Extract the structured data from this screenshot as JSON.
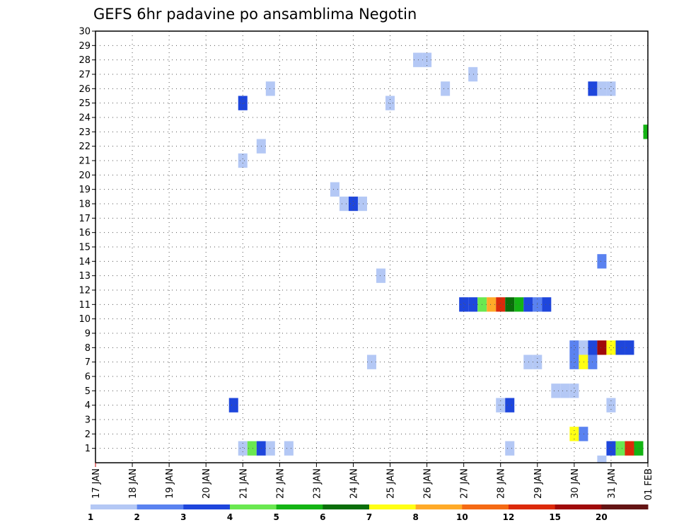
{
  "title": "GEFS 6hr padavine po ansamblima Negotin",
  "chart_data": {
    "type": "heatmap",
    "title": "GEFS 6hr padavine po ansamblima Negotin",
    "x_tick_labels": [
      "17 JAN",
      "18 JAN",
      "19 JAN",
      "20 JAN",
      "21 JAN",
      "22 JAN",
      "23 JAN",
      "24 JAN",
      "25 JAN",
      "26 JAN",
      "27 JAN",
      "28 JAN",
      "29 JAN",
      "30 JAN",
      "31 JAN",
      "01 FEB"
    ],
    "y_tick_labels": [
      "1",
      "2",
      "3",
      "4",
      "5",
      "6",
      "7",
      "8",
      "9",
      "10",
      "11",
      "12",
      "13",
      "14",
      "15",
      "16",
      "17",
      "18",
      "19",
      "20",
      "21",
      "22",
      "23",
      "24",
      "25",
      "26",
      "27",
      "28",
      "29",
      "30"
    ],
    "ylim": [
      0,
      30
    ],
    "grid": true,
    "legend_placement": "bottom",
    "colorbar": {
      "labels": [
        "1",
        "2",
        "3",
        "4",
        "5",
        "6",
        "7",
        "8",
        "10",
        "12",
        "15",
        "20"
      ],
      "colors": [
        "#b4c8f5",
        "#5a82f0",
        "#1e46dc",
        "#6ae850",
        "#14b414",
        "#0a6e0a",
        "#ffff14",
        "#ffaa28",
        "#f56a14",
        "#dc2a0a",
        "#a00a0a",
        "#641414"
      ]
    },
    "x_unit": "6-hour step from 17 JAN 00Z",
    "cells": [
      {
        "x": 16,
        "y": 1,
        "c": 0
      },
      {
        "x": 17,
        "y": 1,
        "c": 3
      },
      {
        "x": 18,
        "y": 1,
        "c": 2
      },
      {
        "x": 19,
        "y": 1,
        "c": 0
      },
      {
        "x": 21,
        "y": 1,
        "c": 0
      },
      {
        "x": 45,
        "y": 1,
        "c": 0
      },
      {
        "x": 56,
        "y": 1,
        "c": 2
      },
      {
        "x": 57,
        "y": 1,
        "c": 3
      },
      {
        "x": 58,
        "y": 1,
        "c": 9
      },
      {
        "x": 59,
        "y": 1,
        "c": 4
      },
      {
        "x": 55,
        "y": 0,
        "c": 0
      },
      {
        "x": 52,
        "y": 2,
        "c": 6
      },
      {
        "x": 53,
        "y": 2,
        "c": 1
      },
      {
        "x": 15,
        "y": 4,
        "c": 2
      },
      {
        "x": 44,
        "y": 4,
        "c": 0
      },
      {
        "x": 45,
        "y": 4,
        "c": 2
      },
      {
        "x": 56,
        "y": 4,
        "c": 0
      },
      {
        "x": 50,
        "y": 5,
        "c": 0
      },
      {
        "x": 51,
        "y": 5,
        "c": 0
      },
      {
        "x": 52,
        "y": 5,
        "c": 0
      },
      {
        "x": 30,
        "y": 7,
        "c": 0
      },
      {
        "x": 47,
        "y": 7,
        "c": 0
      },
      {
        "x": 48,
        "y": 7,
        "c": 0
      },
      {
        "x": 52,
        "y": 7,
        "c": 1
      },
      {
        "x": 53,
        "y": 7,
        "c": 6
      },
      {
        "x": 54,
        "y": 7,
        "c": 1
      },
      {
        "x": 52,
        "y": 8,
        "c": 1
      },
      {
        "x": 53,
        "y": 8,
        "c": 0
      },
      {
        "x": 54,
        "y": 8,
        "c": 2
      },
      {
        "x": 55,
        "y": 8,
        "c": 10
      },
      {
        "x": 56,
        "y": 8,
        "c": 6
      },
      {
        "x": 57,
        "y": 8,
        "c": 2
      },
      {
        "x": 58,
        "y": 8,
        "c": 2
      },
      {
        "x": 40,
        "y": 11,
        "c": 2
      },
      {
        "x": 41,
        "y": 11,
        "c": 2
      },
      {
        "x": 42,
        "y": 11,
        "c": 3
      },
      {
        "x": 43,
        "y": 11,
        "c": 7
      },
      {
        "x": 44,
        "y": 11,
        "c": 9
      },
      {
        "x": 45,
        "y": 11,
        "c": 5
      },
      {
        "x": 46,
        "y": 11,
        "c": 4
      },
      {
        "x": 47,
        "y": 11,
        "c": 2
      },
      {
        "x": 48,
        "y": 11,
        "c": 1
      },
      {
        "x": 49,
        "y": 11,
        "c": 2
      },
      {
        "x": 31,
        "y": 13,
        "c": 0
      },
      {
        "x": 55,
        "y": 14,
        "c": 1
      },
      {
        "x": 27,
        "y": 18,
        "c": 0
      },
      {
        "x": 28,
        "y": 18,
        "c": 2
      },
      {
        "x": 29,
        "y": 18,
        "c": 0
      },
      {
        "x": 26,
        "y": 19,
        "c": 0
      },
      {
        "x": 16,
        "y": 21,
        "c": 0
      },
      {
        "x": 18,
        "y": 22,
        "c": 0
      },
      {
        "x": 60,
        "y": 23,
        "c": 4
      },
      {
        "x": 16,
        "y": 25,
        "c": 2
      },
      {
        "x": 32,
        "y": 25,
        "c": 0
      },
      {
        "x": 19,
        "y": 26,
        "c": 0
      },
      {
        "x": 38,
        "y": 26,
        "c": 0
      },
      {
        "x": 54,
        "y": 26,
        "c": 2
      },
      {
        "x": 55,
        "y": 26,
        "c": 0
      },
      {
        "x": 56,
        "y": 26,
        "c": 0
      },
      {
        "x": 41,
        "y": 27,
        "c": 0
      },
      {
        "x": 35,
        "y": 28,
        "c": 0
      },
      {
        "x": 36,
        "y": 28,
        "c": 0
      }
    ]
  }
}
